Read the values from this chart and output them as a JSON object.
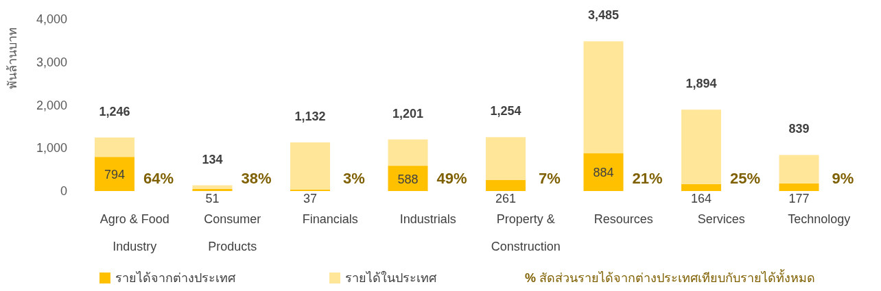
{
  "chart_data": {
    "type": "bar",
    "stacked": true,
    "ylabel": "พันล้านบาท",
    "categories": [
      "Agro & Food Industry",
      "Consumer Products",
      "Financials",
      "Industrials",
      "Property & Construction",
      "Resources",
      "Services",
      "Technology"
    ],
    "series": [
      {
        "name": "รายได้จากต่างประเทศ",
        "color": "#ffc000",
        "values": [
          794,
          51,
          37,
          588,
          261,
          884,
          164,
          177
        ],
        "value_labels": [
          "794",
          "51",
          "37",
          "588",
          "261",
          "884",
          "164",
          "177"
        ]
      },
      {
        "name": "รายได้ในประเทศ",
        "color": "#ffe699",
        "values": [
          452,
          83,
          1095,
          613,
          993,
          2601,
          1730,
          662
        ]
      }
    ],
    "totals": [
      "1,246",
      "134",
      "1,132",
      "1,201",
      "1,254",
      "3,485",
      "1,894",
      "839"
    ],
    "ylim": [
      0,
      4000
    ],
    "yticks": [
      0,
      {
        "value": 1000,
        "label": "1,000"
      },
      {
        "value": 2000,
        "label": "2,000"
      },
      {
        "value": 3000,
        "label": "3,000"
      },
      {
        "value": 4000,
        "label": "4,000"
      }
    ],
    "legend": "bottom",
    "annotations": [
      "64%",
      "38%",
      "3%",
      "49%",
      "7%",
      "21%",
      "25%",
      "9%",
      "% สัดส่วนรายได้จากต่างประเทศเทียบกับรายได้ทั้งหมด"
    ]
  }
}
